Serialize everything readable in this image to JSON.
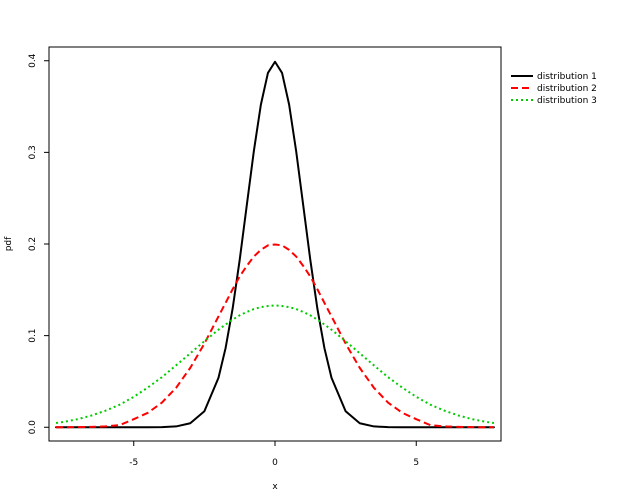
{
  "chart_data": {
    "type": "line",
    "title": "",
    "xlabel": "x",
    "ylabel": "pdf",
    "xlim": [
      -8,
      8
    ],
    "ylim": [
      -0.015,
      0.415
    ],
    "x_ticks": [
      -5,
      0,
      5
    ],
    "x_tick_labels": [
      "-5",
      "0",
      "5"
    ],
    "y_ticks": [
      0.0,
      0.1,
      0.2,
      0.3,
      0.4
    ],
    "y_tick_labels": [
      "0.0",
      "0.1",
      "0.2",
      "0.3",
      "0.4"
    ],
    "grid": false,
    "legend_position": "top-right, outside plot",
    "x": [
      -7.75,
      -7.5,
      -7,
      -6.5,
      -6,
      -5.5,
      -5,
      -4.5,
      -4,
      -3.5,
      -3,
      -2.5,
      -2,
      -1.75,
      -1.5,
      -1.25,
      -1,
      -0.75,
      -0.5,
      -0.25,
      0,
      0.25,
      0.5,
      0.75,
      1,
      1.25,
      1.5,
      1.75,
      2,
      2.5,
      3,
      3.5,
      4,
      4.5,
      5,
      5.5,
      6,
      6.5,
      7,
      7.5,
      7.75
    ],
    "series": [
      {
        "name": "distribution 1",
        "color": "#000000",
        "style": "solid",
        "values": [
          0,
          0,
          0,
          0,
          0,
          0,
          0,
          0,
          0.0001,
          0.0009,
          0.0044,
          0.0175,
          0.054,
          0.0863,
          0.1295,
          0.1826,
          0.242,
          0.3011,
          0.3521,
          0.3867,
          0.3989,
          0.3867,
          0.3521,
          0.3011,
          0.242,
          0.1826,
          0.1295,
          0.0863,
          0.054,
          0.0175,
          0.0044,
          0.0009,
          0.0001,
          0,
          0,
          0,
          0,
          0,
          0,
          0,
          0
        ]
      },
      {
        "name": "distribution 2",
        "color": "#ff0000",
        "style": "dashed",
        "values": [
          0,
          0,
          0.0001,
          0.0004,
          0.0009,
          0.0023,
          0.0088,
          0.0158,
          0.027,
          0.0431,
          0.0648,
          0.0913,
          0.121,
          0.1357,
          0.1506,
          0.1646,
          0.176,
          0.1863,
          0.1936,
          0.1985,
          0.1995,
          0.1985,
          0.1936,
          0.1863,
          0.176,
          0.1646,
          0.1506,
          0.1357,
          0.121,
          0.0913,
          0.0648,
          0.0431,
          0.027,
          0.0158,
          0.0088,
          0.0023,
          0.0009,
          0.0004,
          0.0001,
          0,
          0
        ]
      },
      {
        "name": "distribution 3",
        "color": "#00cc00",
        "style": "dotted",
        "values": [
          0.0047,
          0.0057,
          0.0087,
          0.0128,
          0.0181,
          0.0246,
          0.0332,
          0.0434,
          0.0547,
          0.0676,
          0.0807,
          0.0939,
          0.1065,
          0.1121,
          0.1174,
          0.1222,
          0.1258,
          0.129,
          0.1311,
          0.1323,
          0.133,
          0.1323,
          0.1311,
          0.129,
          0.1258,
          0.1222,
          0.1174,
          0.1121,
          0.1065,
          0.0939,
          0.0807,
          0.0676,
          0.0547,
          0.0434,
          0.0332,
          0.0246,
          0.0181,
          0.0128,
          0.0087,
          0.0057,
          0.0047
        ]
      }
    ]
  }
}
